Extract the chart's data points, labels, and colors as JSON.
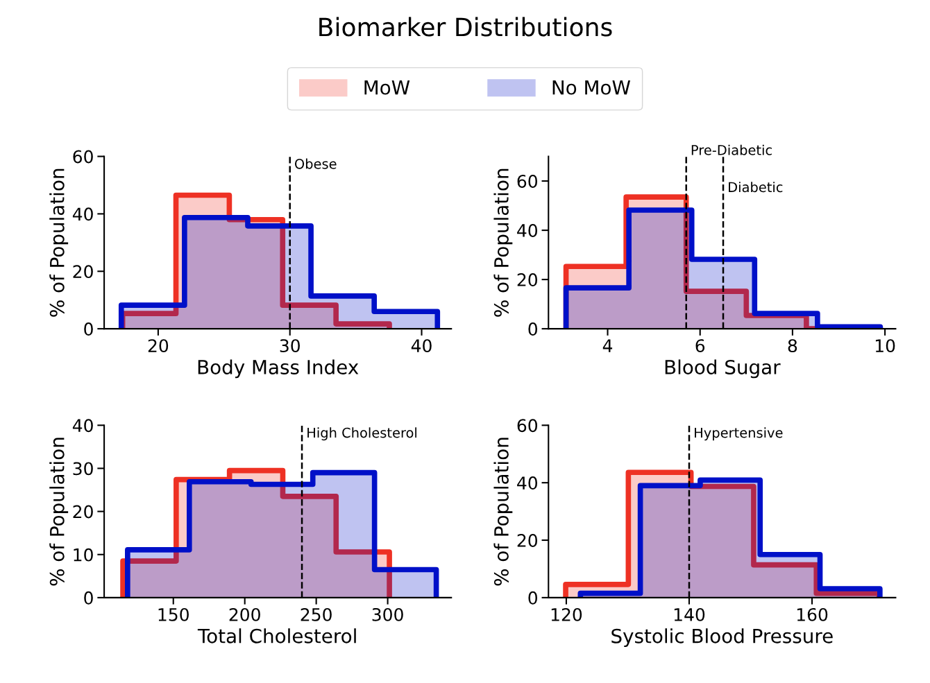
{
  "chart_data": [
    {
      "type": "histogram",
      "title": "Biomarker Distributions",
      "legend": "top",
      "xlabel": "Body Mass Index",
      "ylabel": "% of Population",
      "xlim": [
        15.9,
        42.25
      ],
      "xticks": [
        20,
        30,
        40
      ],
      "ylim": [
        0,
        60
      ],
      "yticks": [
        0,
        20,
        40,
        60
      ],
      "bins": [
        17.3,
        21.35,
        25.4,
        29.45,
        33.5,
        37.55
      ],
      "series": [
        {
          "name": "MoW",
          "color": "#ee3124",
          "values": [
            5.3,
            46.5,
            38.0,
            8.2,
            1.7
          ]
        },
        {
          "name": "No MoW",
          "color": "#0010c8",
          "bins": [
            17.2,
            22.0,
            26.8,
            31.6,
            36.4,
            41.2
          ],
          "values": [
            8.2,
            38.7,
            35.8,
            11.4,
            6.0
          ]
        }
      ],
      "ref_lines": [
        {
          "axis": "x",
          "value": 30,
          "label": "Obese",
          "color": "#000000",
          "line_style": "dashed"
        }
      ]
    },
    {
      "type": "histogram",
      "xlabel": "Blood Sugar",
      "ylabel": "% of Population",
      "xlim": [
        2.72,
        10.23
      ],
      "xticks": [
        4,
        6,
        8,
        10
      ],
      "ylim": [
        0,
        70
      ],
      "yticks": [
        0,
        20,
        40,
        60
      ],
      "bins": [
        3.1,
        4.4,
        5.7,
        7.0,
        8.3,
        9.6
      ],
      "series": [
        {
          "color": "#ee3124",
          "values": [
            25.3,
            53.5,
            15.2,
            5.4,
            0
          ]
        },
        {
          "color": "#0010c8",
          "bins": [
            3.1,
            4.46,
            5.82,
            7.18,
            8.54,
            9.9
          ],
          "values": [
            16.6,
            48.2,
            28.2,
            6.2,
            0.8
          ]
        }
      ],
      "ref_lines": [
        {
          "axis": "x",
          "value": 5.7,
          "label": "Pre-Diabetic",
          "color": "#000000",
          "line_style": "dashed"
        },
        {
          "axis": "x",
          "value": 6.5,
          "label": "Diabetic",
          "color": "#000000",
          "line_style": "dashed"
        }
      ]
    },
    {
      "type": "histogram",
      "xlabel": "Total Cholesterol",
      "ylabel": "% of Population",
      "xlim": [
        101.6,
        344.5
      ],
      "xticks": [
        150,
        200,
        250,
        300
      ],
      "ylim": [
        0,
        40
      ],
      "yticks": [
        0,
        10,
        20,
        30,
        40
      ],
      "bins": [
        114.7,
        152.0,
        189.3,
        226.6,
        263.9,
        301.2
      ],
      "series": [
        {
          "color": "#ee3124",
          "values": [
            8.5,
            27.4,
            29.5,
            23.5,
            10.6
          ]
        },
        {
          "color": "#0010c8",
          "bins": [
            118.0,
            161.2,
            204.4,
            247.6,
            290.8,
            334.0
          ],
          "values": [
            11.1,
            26.9,
            26.3,
            29.0,
            6.5
          ]
        }
      ],
      "ref_lines": [
        {
          "axis": "x",
          "value": 240,
          "label": "High Cholesterol",
          "color": "#000000",
          "line_style": "dashed"
        }
      ]
    },
    {
      "type": "histogram",
      "xlabel": "Systolic Blood Pressure",
      "ylabel": "% of Population",
      "xlim": [
        117.1,
        173.6
      ],
      "xticks": [
        120,
        140,
        160
      ],
      "ylim": [
        0,
        60
      ],
      "yticks": [
        0,
        20,
        40,
        60
      ],
      "bins": [
        119.9,
        130.1,
        140.3,
        150.5,
        160.7,
        170.9
      ],
      "series": [
        {
          "color": "#ee3124",
          "values": [
            4.6,
            43.6,
            38.7,
            11.4,
            1.5
          ]
        },
        {
          "color": "#0010c8",
          "bins": [
            122.3,
            132.05,
            141.8,
            151.55,
            161.3,
            171.05
          ],
          "values": [
            1.5,
            39.0,
            40.9,
            15.0,
            3.1
          ]
        }
      ],
      "ref_lines": [
        {
          "axis": "x",
          "value": 140,
          "label": "Hypertensive",
          "color": "#000000",
          "line_style": "dashed"
        }
      ]
    }
  ]
}
